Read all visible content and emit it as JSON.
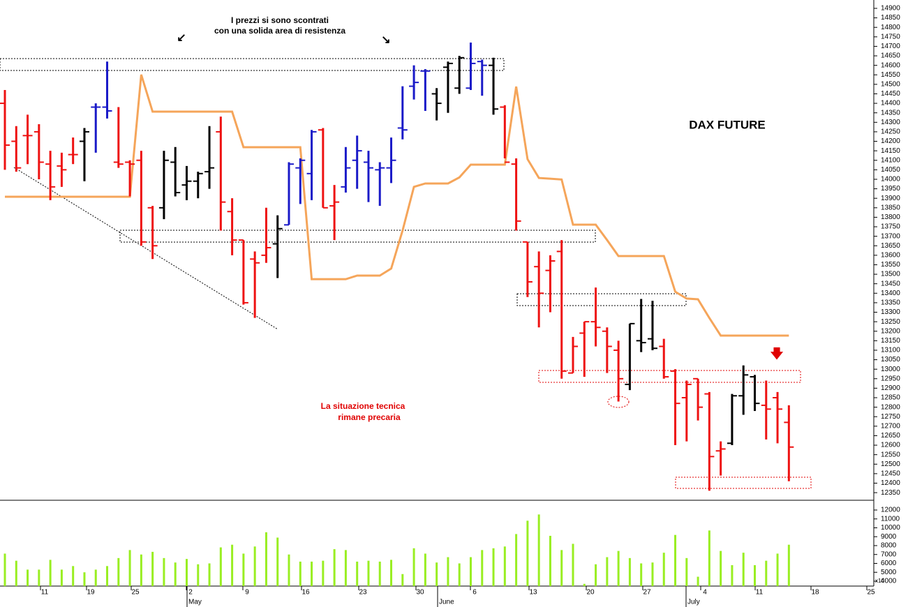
{
  "chart_data": [
    {
      "type": "ohlc",
      "title": "DAX FUTURE",
      "annotations": [
        "I prezzi si sono scontrati",
        "con una solida area di resistenza",
        "La situazione tecnica",
        "rimane precaria"
      ],
      "high": [
        14470,
        14280,
        14340,
        14290,
        14150,
        14140,
        14220,
        14270,
        14400,
        14620,
        14380,
        14100,
        14150,
        13860,
        14150,
        14170,
        14070,
        14040,
        14280,
        14330,
        13900,
        13680,
        13620,
        13850,
        13810,
        14090,
        14110,
        14260,
        14270,
        13970,
        14170,
        14230,
        14150,
        14090,
        14220,
        14490,
        14600,
        14580,
        14480,
        14620,
        14650,
        14720,
        14630,
        14640,
        14390,
        14110,
        13670,
        13620,
        13600,
        13680,
        13170,
        13250,
        13430,
        13220,
        13150,
        13240,
        13370,
        13360,
        13160,
        13000,
        12940,
        12950,
        12880,
        12620,
        12870,
        13020,
        12970,
        12940,
        12880,
        12810
      ],
      "low": [
        14050,
        14040,
        14080,
        14000,
        13890,
        13960,
        14080,
        13990,
        14140,
        14320,
        14060,
        13910,
        13650,
        13580,
        13790,
        13910,
        13890,
        13900,
        13950,
        13730,
        13600,
        13340,
        13270,
        13560,
        13480,
        13760,
        13870,
        13890,
        13850,
        13680,
        13930,
        13950,
        13880,
        13860,
        13980,
        14210,
        14420,
        14360,
        14310,
        14350,
        14450,
        14470,
        14440,
        14340,
        14110,
        13730,
        13380,
        13220,
        13300,
        12950,
        12980,
        12960,
        13120,
        12980,
        12830,
        12890,
        13090,
        13100,
        12950,
        12600,
        12620,
        12730,
        12360,
        12440,
        12600,
        12760,
        12780,
        12630,
        12610,
        12410
      ],
      "open": [
        14400,
        14200,
        14230,
        14250,
        14080,
        14070,
        14130,
        14200,
        14380,
        14380,
        14090,
        14090,
        14100,
        13850,
        13850,
        14090,
        13970,
        13990,
        14040,
        14250,
        13830,
        13680,
        13580,
        13600,
        13660,
        13760,
        14060,
        14030,
        14260,
        13860,
        13960,
        14100,
        14090,
        14050,
        14060,
        14270,
        14490,
        14570,
        14450,
        14590,
        14480,
        14480,
        14620,
        14600,
        14380,
        14080,
        13670,
        13540,
        13520,
        13620,
        12980,
        13190,
        13250,
        13200,
        13100,
        12920,
        13150,
        13160,
        13120,
        12990,
        12850,
        12950,
        12870,
        12570,
        12610,
        12860,
        12960,
        12810,
        12850,
        12720
      ],
      "close": [
        14180,
        14060,
        14230,
        14090,
        13960,
        14050,
        14130,
        14250,
        14380,
        14360,
        14080,
        14080,
        13670,
        13650,
        14100,
        13930,
        13990,
        14030,
        14060,
        13880,
        13680,
        13350,
        13560,
        13640,
        13740,
        14080,
        14100,
        14250,
        13850,
        13880,
        14060,
        14150,
        14060,
        14060,
        14100,
        14260,
        14510,
        14570,
        14400,
        14610,
        14640,
        14610,
        14600,
        14370,
        14090,
        13780,
        13460,
        13400,
        13570,
        12990,
        13120,
        13250,
        13220,
        13120,
        12950,
        13240,
        13140,
        13110,
        12960,
        12820,
        12920,
        12800,
        12540,
        12580,
        12860,
        12970,
        12820,
        12790,
        12790,
        12590
      ],
      "colors": [
        "#ee1111",
        "#ee1111",
        "#ee1111",
        "#ee1111",
        "#ee1111",
        "#ee1111",
        "#ee1111",
        "#000000",
        "#1a1ac8",
        "#1a1ac8",
        "#ee1111",
        "#ee1111",
        "#ee1111",
        "#ee1111",
        "#000000",
        "#000000",
        "#000000",
        "#000000",
        "#000000",
        "#ee1111",
        "#ee1111",
        "#ee1111",
        "#ee1111",
        "#ee1111",
        "#000000",
        "#1a1ac8",
        "#1a1ac8",
        "#1a1ac8",
        "#ee1111",
        "#ee1111",
        "#1a1ac8",
        "#1a1ac8",
        "#1a1ac8",
        "#1a1ac8",
        "#1a1ac8",
        "#1a1ac8",
        "#1a1ac8",
        "#1a1ac8",
        "#000000",
        "#000000",
        "#000000",
        "#1a1ac8",
        "#1a1ac8",
        "#000000",
        "#ee1111",
        "#ee1111",
        "#ee1111",
        "#ee1111",
        "#ee1111",
        "#ee1111",
        "#ee1111",
        "#ee1111",
        "#ee1111",
        "#ee1111",
        "#ee1111",
        "#000000",
        "#000000",
        "#000000",
        "#ee1111",
        "#ee1111",
        "#ee1111",
        "#ee1111",
        "#ee1111",
        "#ee1111",
        "#000000",
        "#000000",
        "#000000",
        "#ee1111",
        "#ee1111",
        "#ee1111"
      ],
      "line_color": "#f5a55a",
      "line_values": [
        13908,
        13908,
        13908,
        13908,
        13908,
        13908,
        13908,
        13908,
        13908,
        13908,
        13908,
        13908,
        14551,
        14356,
        14356,
        14356,
        14356,
        14356,
        14356,
        14356,
        14356,
        14169,
        14169,
        14169,
        14169,
        14169,
        14169,
        13474,
        13474,
        13474,
        13474,
        13493,
        13493,
        13493,
        13530,
        13730,
        13960,
        13978,
        13978,
        13978,
        14010,
        14077,
        14077,
        14077,
        14077,
        14488,
        14106,
        14007,
        14003,
        13999,
        13761,
        13761,
        13761,
        13680,
        13596,
        13596,
        13596,
        13596,
        13596,
        13408,
        13372,
        13368,
        13270,
        13177,
        13177,
        13177,
        13177,
        13177,
        13177,
        13177
      ],
      "ylim": [
        12310,
        14944
      ],
      "yticks": [
        12350,
        12400,
        12450,
        12500,
        12550,
        12600,
        12650,
        12700,
        12750,
        12800,
        12850,
        12900,
        12950,
        13000,
        13050,
        13100,
        13150,
        13200,
        13250,
        13300,
        13350,
        13400,
        13450,
        13500,
        13550,
        13600,
        13650,
        13700,
        13750,
        13800,
        13850,
        13900,
        13950,
        14000,
        14050,
        14100,
        14150,
        14200,
        14250,
        14300,
        14350,
        14400,
        14450,
        14500,
        14550,
        14600,
        14650,
        14700,
        14750,
        14800,
        14850,
        14900
      ],
      "xtick_labels": [
        "11",
        "19",
        "25",
        "2",
        "9",
        "16",
        "23",
        "30",
        "6",
        "13",
        "20",
        "27",
        "4",
        "11",
        "18",
        "25"
      ],
      "month_labels": [
        "May",
        "June",
        "July"
      ]
    },
    {
      "type": "bar",
      "color": "#99ee22",
      "axis_multiplier": "x10",
      "values": [
        7100,
        6300,
        5300,
        5300,
        6400,
        5300,
        5700,
        5000,
        5300,
        5700,
        6600,
        7500,
        7000,
        7300,
        6600,
        6100,
        6500,
        5900,
        6000,
        7800,
        8100,
        7100,
        7900,
        9500,
        8900,
        7000,
        6200,
        6200,
        6300,
        7600,
        7500,
        6200,
        6300,
        6200,
        6400,
        4800,
        7700,
        7100,
        6100,
        6700,
        6000,
        6700,
        7500,
        7700,
        7900,
        9300,
        10800,
        11500,
        9100,
        7500,
        8200,
        3700,
        5900,
        6700,
        7400,
        6600,
        6000,
        6100,
        7200,
        9200,
        6600,
        4500,
        9700,
        7400,
        5800,
        7200,
        5800,
        6300,
        7100,
        8100
      ],
      "ylim": [
        3450,
        13020
      ],
      "yticks": [
        4000,
        5000,
        6000,
        7000,
        8000,
        9000,
        10000,
        11000,
        12000
      ]
    }
  ]
}
